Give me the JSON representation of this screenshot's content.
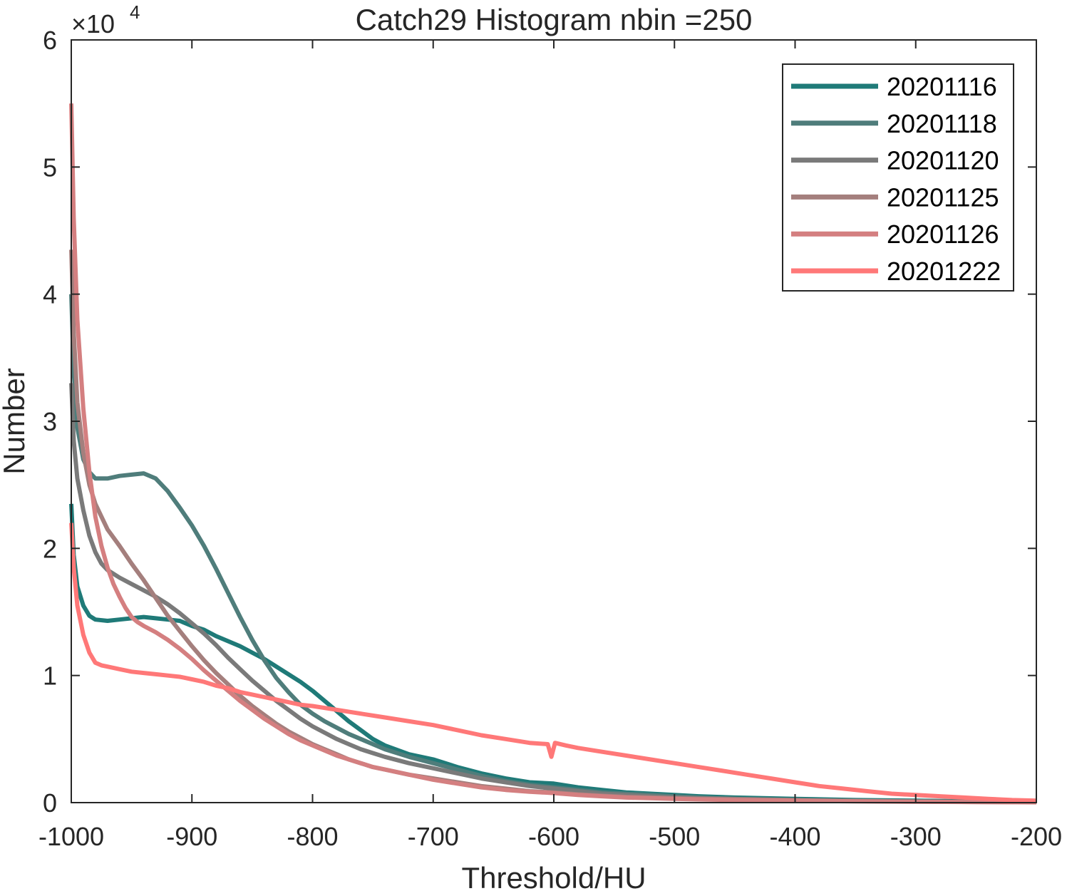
{
  "chart_data": {
    "type": "line",
    "title": "Catch29  Histogram nbin =250",
    "xlabel": "Threshold/HU",
    "ylabel": "Number",
    "y_exponent_label": "×10",
    "y_exponent": "4",
    "y_multiplier": 10000,
    "xlim": [
      -1000,
      -200
    ],
    "ylim": [
      0,
      6
    ],
    "xticks": [
      "-1000",
      "-900",
      "-800",
      "-700",
      "-600",
      "-500",
      "-400",
      "-300",
      "-200"
    ],
    "yticks": [
      "0",
      "1",
      "2",
      "3",
      "4",
      "5",
      "6"
    ],
    "grid": false,
    "legend_position": "top-right",
    "series": [
      {
        "name": "20201116",
        "color": "#1f7a78",
        "points": [
          [
            -1000,
            2.35
          ],
          [
            -998,
            1.95
          ],
          [
            -995,
            1.7
          ],
          [
            -990,
            1.55
          ],
          [
            -985,
            1.47
          ],
          [
            -980,
            1.44
          ],
          [
            -970,
            1.43
          ],
          [
            -960,
            1.44
          ],
          [
            -950,
            1.45
          ],
          [
            -940,
            1.46
          ],
          [
            -930,
            1.45
          ],
          [
            -920,
            1.44
          ],
          [
            -910,
            1.43
          ],
          [
            -900,
            1.39
          ],
          [
            -890,
            1.36
          ],
          [
            -880,
            1.31
          ],
          [
            -870,
            1.27
          ],
          [
            -860,
            1.23
          ],
          [
            -850,
            1.18
          ],
          [
            -840,
            1.13
          ],
          [
            -830,
            1.07
          ],
          [
            -820,
            1.01
          ],
          [
            -810,
            0.95
          ],
          [
            -800,
            0.88
          ],
          [
            -790,
            0.8
          ],
          [
            -780,
            0.72
          ],
          [
            -770,
            0.64
          ],
          [
            -760,
            0.57
          ],
          [
            -750,
            0.5
          ],
          [
            -740,
            0.45
          ],
          [
            -720,
            0.38
          ],
          [
            -700,
            0.34
          ],
          [
            -680,
            0.28
          ],
          [
            -660,
            0.23
          ],
          [
            -640,
            0.19
          ],
          [
            -620,
            0.16
          ],
          [
            -600,
            0.15
          ],
          [
            -580,
            0.12
          ],
          [
            -560,
            0.1
          ],
          [
            -540,
            0.08
          ],
          [
            -520,
            0.07
          ],
          [
            -500,
            0.06
          ],
          [
            -480,
            0.05
          ],
          [
            -450,
            0.04
          ],
          [
            -400,
            0.03
          ],
          [
            -350,
            0.02
          ],
          [
            -300,
            0.015
          ],
          [
            -250,
            0.01
          ],
          [
            -200,
            0.005
          ]
        ]
      },
      {
        "name": "20201118",
        "color": "#4f7d7b",
        "points": [
          [
            -1000,
            4.0
          ],
          [
            -998,
            3.4
          ],
          [
            -995,
            2.95
          ],
          [
            -990,
            2.7
          ],
          [
            -985,
            2.6
          ],
          [
            -980,
            2.55
          ],
          [
            -970,
            2.55
          ],
          [
            -960,
            2.57
          ],
          [
            -950,
            2.58
          ],
          [
            -940,
            2.59
          ],
          [
            -930,
            2.55
          ],
          [
            -920,
            2.45
          ],
          [
            -910,
            2.32
          ],
          [
            -900,
            2.18
          ],
          [
            -890,
            2.02
          ],
          [
            -880,
            1.84
          ],
          [
            -870,
            1.65
          ],
          [
            -860,
            1.46
          ],
          [
            -850,
            1.28
          ],
          [
            -840,
            1.12
          ],
          [
            -830,
            0.98
          ],
          [
            -820,
            0.87
          ],
          [
            -810,
            0.77
          ],
          [
            -800,
            0.7
          ],
          [
            -790,
            0.64
          ],
          [
            -780,
            0.59
          ],
          [
            -770,
            0.54
          ],
          [
            -760,
            0.5
          ],
          [
            -750,
            0.46
          ],
          [
            -740,
            0.42
          ],
          [
            -720,
            0.36
          ],
          [
            -700,
            0.31
          ],
          [
            -680,
            0.26
          ],
          [
            -660,
            0.21
          ],
          [
            -640,
            0.17
          ],
          [
            -620,
            0.14
          ],
          [
            -600,
            0.12
          ],
          [
            -580,
            0.1
          ],
          [
            -560,
            0.08
          ],
          [
            -540,
            0.07
          ],
          [
            -520,
            0.06
          ],
          [
            -500,
            0.05
          ],
          [
            -480,
            0.04
          ],
          [
            -450,
            0.03
          ],
          [
            -400,
            0.02
          ],
          [
            -350,
            0.015
          ],
          [
            -300,
            0.01
          ],
          [
            -250,
            0.007
          ],
          [
            -200,
            0.004
          ]
        ]
      },
      {
        "name": "20201120",
        "color": "#7a7a7a",
        "points": [
          [
            -1000,
            3.3
          ],
          [
            -998,
            2.85
          ],
          [
            -995,
            2.55
          ],
          [
            -990,
            2.3
          ],
          [
            -985,
            2.1
          ],
          [
            -980,
            1.97
          ],
          [
            -975,
            1.88
          ],
          [
            -970,
            1.83
          ],
          [
            -960,
            1.77
          ],
          [
            -950,
            1.72
          ],
          [
            -940,
            1.67
          ],
          [
            -930,
            1.62
          ],
          [
            -920,
            1.56
          ],
          [
            -910,
            1.49
          ],
          [
            -900,
            1.41
          ],
          [
            -890,
            1.33
          ],
          [
            -880,
            1.24
          ],
          [
            -870,
            1.14
          ],
          [
            -860,
            1.05
          ],
          [
            -850,
            0.96
          ],
          [
            -840,
            0.88
          ],
          [
            -830,
            0.8
          ],
          [
            -820,
            0.73
          ],
          [
            -810,
            0.66
          ],
          [
            -800,
            0.6
          ],
          [
            -790,
            0.55
          ],
          [
            -780,
            0.5
          ],
          [
            -770,
            0.46
          ],
          [
            -760,
            0.42
          ],
          [
            -750,
            0.39
          ],
          [
            -740,
            0.36
          ],
          [
            -720,
            0.31
          ],
          [
            -700,
            0.27
          ],
          [
            -680,
            0.23
          ],
          [
            -660,
            0.19
          ],
          [
            -640,
            0.16
          ],
          [
            -620,
            0.13
          ],
          [
            -600,
            0.11
          ],
          [
            -580,
            0.09
          ],
          [
            -560,
            0.07
          ],
          [
            -540,
            0.06
          ],
          [
            -520,
            0.05
          ],
          [
            -500,
            0.04
          ],
          [
            -480,
            0.035
          ],
          [
            -450,
            0.03
          ],
          [
            -400,
            0.02
          ],
          [
            -350,
            0.013
          ],
          [
            -300,
            0.009
          ],
          [
            -250,
            0.006
          ],
          [
            -200,
            0.004
          ]
        ]
      },
      {
        "name": "20201125",
        "color": "#a47f7d",
        "points": [
          [
            -1000,
            4.35
          ],
          [
            -998,
            3.7
          ],
          [
            -995,
            3.15
          ],
          [
            -990,
            2.75
          ],
          [
            -985,
            2.5
          ],
          [
            -980,
            2.35
          ],
          [
            -975,
            2.25
          ],
          [
            -970,
            2.15
          ],
          [
            -960,
            2.02
          ],
          [
            -950,
            1.88
          ],
          [
            -940,
            1.75
          ],
          [
            -930,
            1.61
          ],
          [
            -920,
            1.47
          ],
          [
            -910,
            1.35
          ],
          [
            -900,
            1.23
          ],
          [
            -890,
            1.12
          ],
          [
            -880,
            1.02
          ],
          [
            -870,
            0.93
          ],
          [
            -860,
            0.84
          ],
          [
            -850,
            0.76
          ],
          [
            -840,
            0.69
          ],
          [
            -830,
            0.62
          ],
          [
            -820,
            0.56
          ],
          [
            -810,
            0.51
          ],
          [
            -800,
            0.46
          ],
          [
            -790,
            0.42
          ],
          [
            -780,
            0.38
          ],
          [
            -770,
            0.34
          ],
          [
            -760,
            0.31
          ],
          [
            -750,
            0.28
          ],
          [
            -740,
            0.26
          ],
          [
            -720,
            0.22
          ],
          [
            -700,
            0.19
          ],
          [
            -680,
            0.16
          ],
          [
            -660,
            0.13
          ],
          [
            -640,
            0.11
          ],
          [
            -620,
            0.09
          ],
          [
            -600,
            0.08
          ],
          [
            -580,
            0.065
          ],
          [
            -560,
            0.055
          ],
          [
            -540,
            0.045
          ],
          [
            -520,
            0.04
          ],
          [
            -500,
            0.035
          ],
          [
            -480,
            0.03
          ],
          [
            -450,
            0.025
          ],
          [
            -400,
            0.018
          ],
          [
            -350,
            0.012
          ],
          [
            -300,
            0.008
          ],
          [
            -250,
            0.005
          ],
          [
            -200,
            0.003
          ]
        ]
      },
      {
        "name": "20201126",
        "color": "#d47f80",
        "points": [
          [
            -1000,
            5.5
          ],
          [
            -998,
            4.6
          ],
          [
            -995,
            3.8
          ],
          [
            -990,
            3.1
          ],
          [
            -985,
            2.6
          ],
          [
            -980,
            2.25
          ],
          [
            -975,
            2.02
          ],
          [
            -970,
            1.85
          ],
          [
            -965,
            1.72
          ],
          [
            -960,
            1.62
          ],
          [
            -955,
            1.53
          ],
          [
            -950,
            1.46
          ],
          [
            -945,
            1.42
          ],
          [
            -940,
            1.39
          ],
          [
            -930,
            1.34
          ],
          [
            -920,
            1.28
          ],
          [
            -910,
            1.21
          ],
          [
            -900,
            1.13
          ],
          [
            -890,
            1.04
          ],
          [
            -880,
            0.96
          ],
          [
            -870,
            0.88
          ],
          [
            -860,
            0.8
          ],
          [
            -850,
            0.73
          ],
          [
            -840,
            0.66
          ],
          [
            -830,
            0.6
          ],
          [
            -820,
            0.54
          ],
          [
            -810,
            0.49
          ],
          [
            -800,
            0.45
          ],
          [
            -790,
            0.41
          ],
          [
            -780,
            0.37
          ],
          [
            -770,
            0.34
          ],
          [
            -760,
            0.31
          ],
          [
            -750,
            0.28
          ],
          [
            -740,
            0.26
          ],
          [
            -720,
            0.22
          ],
          [
            -700,
            0.18
          ],
          [
            -680,
            0.15
          ],
          [
            -660,
            0.12
          ],
          [
            -640,
            0.1
          ],
          [
            -620,
            0.085
          ],
          [
            -600,
            0.075
          ],
          [
            -580,
            0.06
          ],
          [
            -560,
            0.05
          ],
          [
            -540,
            0.04
          ],
          [
            -520,
            0.035
          ],
          [
            -500,
            0.03
          ],
          [
            -480,
            0.025
          ],
          [
            -450,
            0.02
          ],
          [
            -400,
            0.015
          ],
          [
            -350,
            0.01
          ],
          [
            -300,
            0.007
          ],
          [
            -250,
            0.004
          ],
          [
            -200,
            0.002
          ]
        ]
      },
      {
        "name": "20201222",
        "color": "#ff7878",
        "points": [
          [
            -1000,
            2.2
          ],
          [
            -998,
            1.85
          ],
          [
            -995,
            1.55
          ],
          [
            -990,
            1.32
          ],
          [
            -985,
            1.18
          ],
          [
            -980,
            1.1
          ],
          [
            -975,
            1.08
          ],
          [
            -970,
            1.07
          ],
          [
            -960,
            1.05
          ],
          [
            -950,
            1.03
          ],
          [
            -940,
            1.02
          ],
          [
            -930,
            1.01
          ],
          [
            -920,
            1.0
          ],
          [
            -910,
            0.99
          ],
          [
            -900,
            0.97
          ],
          [
            -890,
            0.95
          ],
          [
            -880,
            0.92
          ],
          [
            -870,
            0.9
          ],
          [
            -860,
            0.87
          ],
          [
            -850,
            0.85
          ],
          [
            -840,
            0.83
          ],
          [
            -830,
            0.81
          ],
          [
            -820,
            0.79
          ],
          [
            -810,
            0.77
          ],
          [
            -800,
            0.76
          ],
          [
            -780,
            0.73
          ],
          [
            -760,
            0.7
          ],
          [
            -740,
            0.67
          ],
          [
            -720,
            0.64
          ],
          [
            -700,
            0.61
          ],
          [
            -680,
            0.57
          ],
          [
            -660,
            0.53
          ],
          [
            -640,
            0.5
          ],
          [
            -620,
            0.47
          ],
          [
            -605,
            0.46
          ],
          [
            -602,
            0.36
          ],
          [
            -599,
            0.47
          ],
          [
            -590,
            0.45
          ],
          [
            -580,
            0.43
          ],
          [
            -560,
            0.4
          ],
          [
            -540,
            0.37
          ],
          [
            -520,
            0.34
          ],
          [
            -500,
            0.31
          ],
          [
            -480,
            0.28
          ],
          [
            -460,
            0.25
          ],
          [
            -440,
            0.22
          ],
          [
            -420,
            0.19
          ],
          [
            -400,
            0.16
          ],
          [
            -380,
            0.13
          ],
          [
            -360,
            0.11
          ],
          [
            -340,
            0.09
          ],
          [
            -320,
            0.07
          ],
          [
            -300,
            0.06
          ],
          [
            -280,
            0.05
          ],
          [
            -260,
            0.04
          ],
          [
            -240,
            0.03
          ],
          [
            -220,
            0.02
          ],
          [
            -200,
            0.015
          ]
        ]
      }
    ]
  }
}
